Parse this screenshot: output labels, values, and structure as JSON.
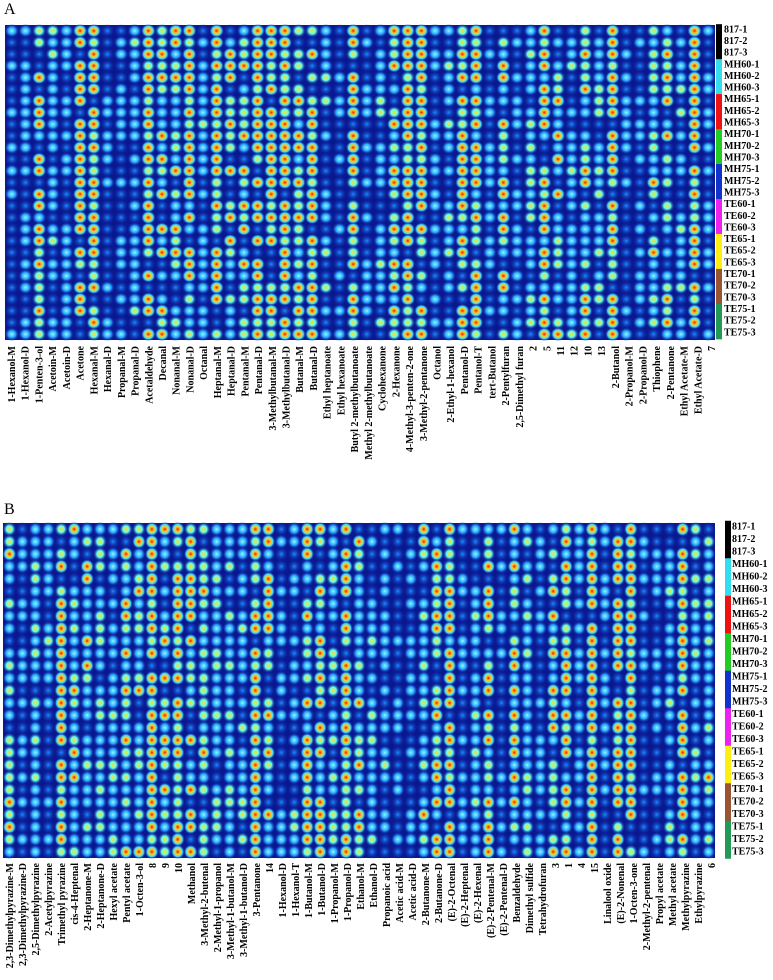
{
  "panels": [
    {
      "label": "A",
      "columns": [
        "1-Hexanol-M",
        "1-Hexanol-D",
        "1-Penten-3-ol",
        "Acetoin-M",
        "Acetoin-D",
        "Acetone",
        "Hexanal-M",
        "Hexanal-D",
        "Propanal-M",
        "Propanal-D",
        "Acetaldehyde",
        "Decanal",
        "Nonanal-M",
        "Nonanal-D",
        "Octanal",
        "Heptanal-M",
        "Heptanal-D",
        "Pentanal-M",
        "Pentanal-D",
        "3-Methylbutanal-M",
        "3-Methylbutanal-D",
        "Butanal-M",
        "Butanal-D",
        "Ethyl heptanoate",
        "Ethyl hexanoate",
        "Butyl 2-methylbutanoate",
        "Methyl 2-methylbutanoate",
        "Cyclohexanone",
        "2-Hexanone",
        "4-Methyl-3-penten-2-one",
        "3-Methyl-2-pentanone",
        "Octanol",
        "2-Ethyl-1-hexanol",
        "Pentanol-D",
        "Pentanol-T",
        "tert-Butanol",
        "2-Pentylfuran",
        "2,5-Dimethyl furan",
        "2",
        "5",
        "11",
        "12",
        "10",
        "13",
        "2-Butanol",
        "2-Propanol-M",
        "2-Propanol-D",
        "Thiophene",
        "2-Pentanone",
        "Ethyl Acetate-M",
        "Ethyl Acetate-D",
        "7"
      ],
      "rows": [
        "817-1",
        "817-2",
        "817-3",
        "MH60-1",
        "MH60-2",
        "MH60-3",
        "MH65-1",
        "MH65-2",
        "MH65-3",
        "MH70-1",
        "MH70-2",
        "MH70-3",
        "MH75-1",
        "MH75-2",
        "MH75-3",
        "TE60-1",
        "TE60-2",
        "TE60-3",
        "TE65-1",
        "TE65-2",
        "TE65-3",
        "TE70-1",
        "TE70-2",
        "TE70-3",
        "TE75-1",
        "TE75-2",
        "TE75-3"
      ]
    },
    {
      "label": "B",
      "columns": [
        "2,3-Dimethylpyrazine-M",
        "2,3-Dimethylpyrazine-D",
        "2,5-Dimethylpyrazine",
        "2-Acetylpyrazine",
        "Trimethyl pyrazine",
        "cis-4-Heptenal",
        "2-Heptanone-M",
        "2-Heptanone-D",
        "Hexyl acetate",
        "Pentyl acetate",
        "1-Octen-3-ol",
        "8",
        "9",
        "10",
        "Methanol",
        "3-Methyl-2-butenal",
        "2-Methyl-1-propanol",
        "3-Methyl-1-butanol-M",
        "3-Methyl-1-butanol-D",
        "3-Pentanone",
        "14",
        "1-Hexanol-D",
        "1-Hexanol-T",
        "1-Butanol-M",
        "1-Butanol-D",
        "1-Propanol-M",
        "1-Propanol-D",
        "Ethanol-M",
        "Ethanol-D",
        "Propanoic acid",
        "Acetic acid-M",
        "Acetic acid-D",
        "2-Butanone-M",
        "2-Butanone-D",
        "(E)-2-Octenal",
        "(E)-2-Heptenal",
        "(E)-2-Hexenal",
        "(E)-2-Pentenal-M",
        "(E)-2-Pentenal-D",
        "Benzaldehyde",
        "Dimethyl sulfide",
        "Tetrahydrofuran",
        "3",
        "1",
        "4",
        "15",
        "Linalool oxide",
        "(E)-2-Nonenal",
        "1-Octen-3-one",
        "2-Methyl-2-pentenal",
        "Propyl acetate",
        "Methyl acetate",
        "Methylpyrazine",
        "Ethylpyrazine",
        "6"
      ],
      "rows": [
        "817-1",
        "817-2",
        "817-3",
        "MH60-1",
        "MH60-2",
        "MH60-3",
        "MH65-1",
        "MH65-2",
        "MH65-3",
        "MH70-1",
        "MH70-2",
        "MH70-3",
        "MH75-1",
        "MH75-2",
        "MH75-3",
        "TE60-1",
        "TE60-2",
        "TE60-3",
        "TE65-1",
        "TE65-2",
        "TE65-3",
        "TE70-1",
        "TE70-2",
        "TE70-3",
        "TE75-1",
        "TE75-2",
        "TE75-3"
      ]
    }
  ],
  "group_colors": [
    "#000000",
    "#33ddee",
    "#ee1111",
    "#22cc22",
    "#1133cc",
    "#ee22ee",
    "#ffee11",
    "#995533",
    "#229955"
  ]
}
